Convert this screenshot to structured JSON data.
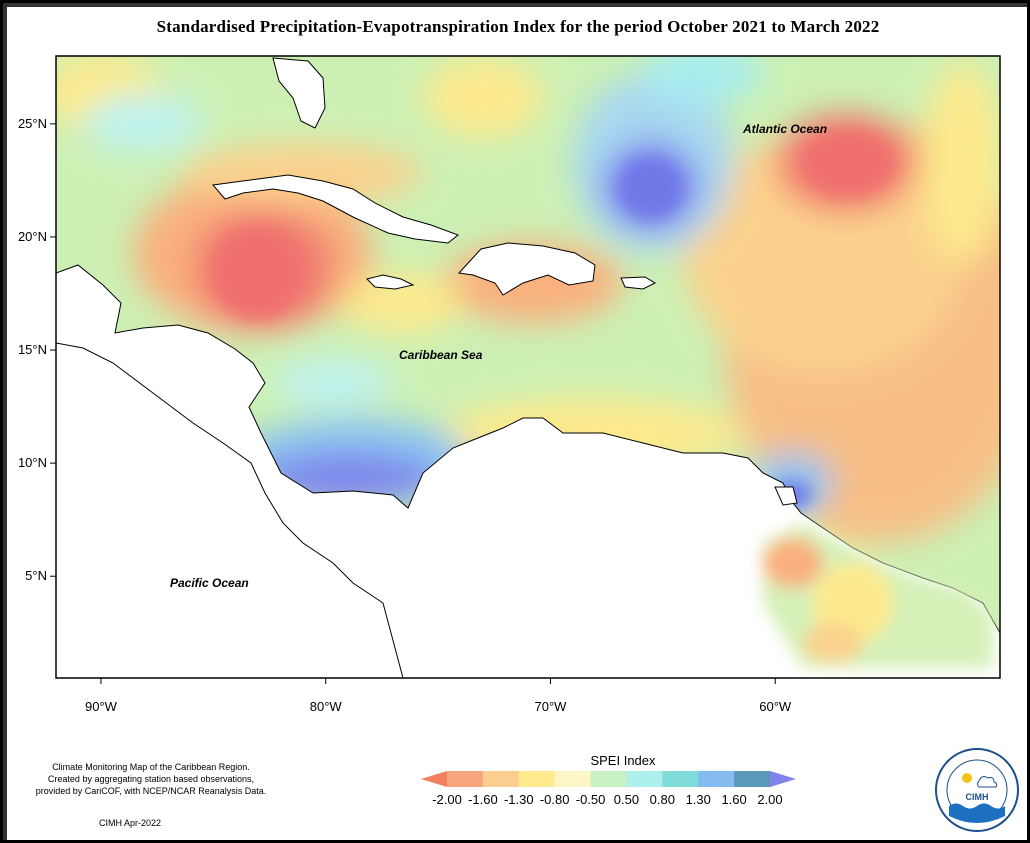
{
  "title": "Standardised Precipitation-Evapotranspiration Index for the period October 2021 to March 2022",
  "map": {
    "extent": {
      "lon_min": -92,
      "lon_max": -50,
      "lat_min": 0.5,
      "lat_max": 28
    },
    "lat_ticks": [
      {
        "value": 25,
        "label": "25°N"
      },
      {
        "value": 20,
        "label": "20°N"
      },
      {
        "value": 15,
        "label": "15°N"
      },
      {
        "value": 10,
        "label": "10°N"
      },
      {
        "value": 5,
        "label": "5°N"
      }
    ],
    "lon_ticks": [
      {
        "value": -90,
        "label": "90°W"
      },
      {
        "value": -80,
        "label": "80°W"
      },
      {
        "value": -70,
        "label": "70°W"
      },
      {
        "value": -60,
        "label": "60°W"
      }
    ],
    "ocean_labels": {
      "atlantic": "Atlantic Ocean",
      "caribbean": "Caribbean Sea",
      "pacific": "Pacific Ocean"
    }
  },
  "legend": {
    "title": "SPEI Index",
    "breaks": [
      "-2.00",
      "-1.60",
      "-1.30",
      "-0.80",
      "-0.50",
      "0.50",
      "0.80",
      "1.30",
      "1.60",
      "2.00"
    ],
    "colors": [
      "#f08060",
      "#f6a57e",
      "#fbcd8e",
      "#fdeb8e",
      "#fdf6c6",
      "#c8f2c4",
      "#aef0ee",
      "#80dcd8",
      "#84bcf0",
      "#5c98b8",
      "#7e84ec"
    ]
  },
  "credits": {
    "line1": "Climate Monitoring Map of the Caribbean Region.",
    "line2": "Created by aggregating station based observations,",
    "line3": "provided by CariCOF, with NCEP/NCAR Reanalysis Data.",
    "stamp": "CIMH Apr-2022"
  },
  "logo": {
    "acronym": "CIMH"
  }
}
